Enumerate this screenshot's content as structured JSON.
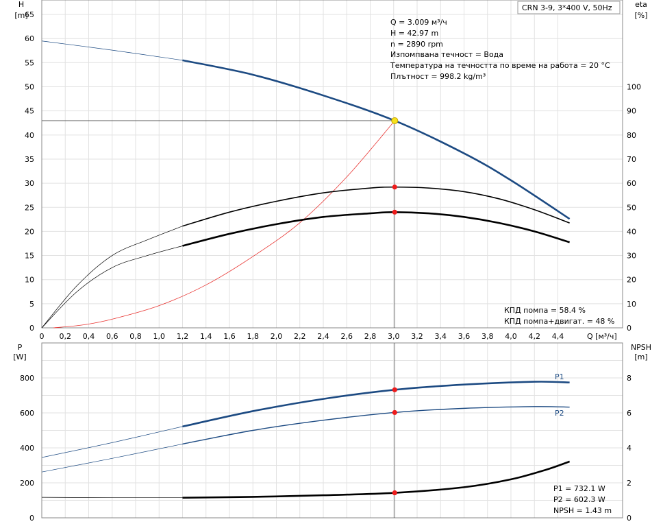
{
  "chart_data": [
    {
      "type": "line",
      "title": "CRN 3-9, 3*400 V, 50Hz",
      "xlabel": "Q [м³/ч]",
      "ylabel_left": [
        "H",
        "[m]"
      ],
      "ylabel_right": [
        "eta",
        "[%]"
      ],
      "xlim": [
        0,
        4.75
      ],
      "ylim_left": [
        0,
        68
      ],
      "ylim_right": [
        0,
        136
      ],
      "x_ticks": [
        "0",
        "0,2",
        "0,4",
        "0,6",
        "0,8",
        "1,0",
        "1,2",
        "1,4",
        "1,6",
        "1,8",
        "2,0",
        "2,2",
        "2,4",
        "2,6",
        "2,8",
        "3,0",
        "3,2",
        "3,4",
        "3,6",
        "3,8",
        "4,0",
        "4,2",
        "4,4"
      ],
      "y_ticks_left": [
        "0",
        "5",
        "10",
        "15",
        "20",
        "25",
        "30",
        "35",
        "40",
        "45",
        "50",
        "55",
        "60",
        "65"
      ],
      "y_ticks_right": [
        "0",
        "10",
        "20",
        "30",
        "40",
        "50",
        "60",
        "70",
        "80",
        "90",
        "100"
      ],
      "grid": true,
      "info_lines": [
        "Q = 3.009 м³/ч",
        "H = 42.97 m",
        "n = 2890 rpm",
        "Изпомпвана течност = Вода",
        "Температура на течността по време на работа = 20 °C",
        "Плътност = 998.2 kg/m³"
      ],
      "efficiency_lines": [
        "КПД помпа = 58.4 %",
        "КПД помпа+двигат. = 48 %"
      ],
      "duty_point": {
        "x": 3.009,
        "y": 42.97
      },
      "series": [
        {
          "axis": "left",
          "color": "#1c4a82",
          "width_main": 2.6,
          "x": [
            0,
            0.6,
            1.2,
            1.8,
            2.4,
            3.009,
            3.6,
            4.0,
            4.5
          ],
          "values": [
            59.5,
            57.6,
            55.5,
            52.5,
            48.2,
            42.97,
            36.2,
            30.6,
            22.6
          ]
        },
        {
          "axis": "right",
          "color": "#000000",
          "width_main": 1.6,
          "x": [
            0,
            0.3,
            0.6,
            0.9,
            1.2,
            1.6,
            2.0,
            2.4,
            2.8,
            3.0,
            3.3,
            3.6,
            3.9,
            4.2,
            4.5
          ],
          "values": [
            0,
            17.5,
            30,
            36.5,
            42.2,
            48,
            52.5,
            56,
            58,
            58.4,
            58,
            56.5,
            53.5,
            49,
            43.5
          ]
        },
        {
          "axis": "right",
          "color": "#000000",
          "width_main": 2.6,
          "x": [
            0,
            0.3,
            0.6,
            0.9,
            1.2,
            1.6,
            2.0,
            2.4,
            2.8,
            3.0,
            3.3,
            3.6,
            3.9,
            4.2,
            4.5
          ],
          "values": [
            0,
            15,
            25,
            30,
            34,
            39,
            43,
            46,
            47.5,
            48,
            47.5,
            46,
            43.5,
            40,
            35.5
          ]
        },
        {
          "axis": "left",
          "color": "#e8322f",
          "width_main": 0.8,
          "x": [
            0.1,
            0.35,
            0.6,
            1.0,
            1.4,
            1.8,
            2.2,
            2.6,
            3.009
          ],
          "values": [
            0,
            0.6,
            1.8,
            4.6,
            8.9,
            14.8,
            21.8,
            31.3,
            42.97
          ]
        }
      ],
      "markers_right": [
        58.4,
        48
      ]
    },
    {
      "type": "line",
      "ylabel_left": [
        "P",
        "[W]"
      ],
      "ylabel_right": [
        "NPSH",
        "[m]"
      ],
      "xlim": [
        0,
        4.75
      ],
      "ylim_left": [
        0,
        1000
      ],
      "ylim_right": [
        0,
        10
      ],
      "y_ticks_left": [
        "0",
        "200",
        "400",
        "600",
        "800"
      ],
      "y_ticks_right": [
        "0",
        "2",
        "4",
        "6",
        "8"
      ],
      "grid": true,
      "power_lines": [
        "P1 = 732.1 W",
        "P2 = 602.3 W",
        "NPSH = 1.43 m"
      ],
      "series": [
        {
          "name": "P1",
          "axis": "left",
          "color": "#1c4a82",
          "width_main": 2.6,
          "x": [
            0,
            0.6,
            1.2,
            1.8,
            2.4,
            3.009,
            3.6,
            4.2,
            4.5
          ],
          "values": [
            345,
            430,
            522,
            610,
            680,
            732.1,
            762,
            778,
            774
          ]
        },
        {
          "name": "P2",
          "axis": "left",
          "color": "#1c4a82",
          "width_main": 1.4,
          "x": [
            0,
            0.6,
            1.2,
            1.8,
            2.4,
            3.009,
            3.6,
            4.2,
            4.5
          ],
          "values": [
            262,
            340,
            422,
            500,
            558,
            602.3,
            626,
            636,
            633
          ]
        },
        {
          "name": "NPSH",
          "axis": "right",
          "color": "#000000",
          "width_main": 2.6,
          "x": [
            0,
            0.6,
            1.2,
            1.8,
            2.4,
            3.009,
            3.6,
            4.0,
            4.3,
            4.5
          ],
          "values": [
            1.17,
            1.15,
            1.15,
            1.2,
            1.29,
            1.43,
            1.75,
            2.2,
            2.75,
            3.22
          ]
        }
      ],
      "markers": [
        732.1,
        602.3
      ],
      "marker_npsh": 1.43
    }
  ]
}
